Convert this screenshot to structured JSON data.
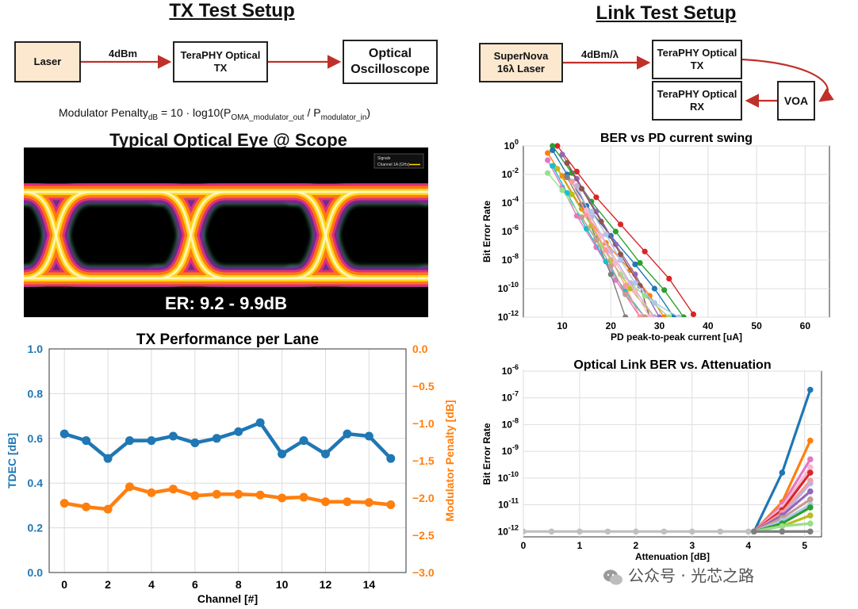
{
  "tx_setup": {
    "title": "TX Test Setup",
    "laser": "Laser",
    "arrow_label": "4dBm",
    "tx_line1": "TeraPHY Optical",
    "tx_line2": "TX",
    "scope_line1": "Optical",
    "scope_line2": "Oscilloscope",
    "formula": {
      "lhs": "Modulator Penalty",
      "lhs_sub": "dB",
      "mid": " = 10 · log10(P",
      "num_sub": "OMA_modulator_out",
      "slash": "  /  P",
      "den_sub": "modulator_in",
      "close": ")"
    }
  },
  "link_setup": {
    "title": "Link Test Setup",
    "laser_line1": "SuperNova",
    "laser_line2": "16λ Laser",
    "arrow_label": "4dBm/λ",
    "tx_line1": "TeraPHY Optical",
    "tx_line2": "TX",
    "rx_line1": "TeraPHY Optical",
    "rx_line2": "RX",
    "voa": "VOA"
  },
  "eye": {
    "title": "Typical Optical Eye @ Scope",
    "er_label": "ER: 9.2 - 9.9dB",
    "legend_title": "Signals",
    "legend_entry": "Channel 1A (GHz)"
  },
  "watermark": "公众号 · 光芯之路",
  "chart_data": [
    {
      "id": "tx_perf",
      "type": "line",
      "title": "TX Performance per Lane",
      "xlabel": "Channel [#]",
      "ylabel": "TDEC [dB]",
      "ylabel_right": "Modulator Penalty [dB]",
      "xlim": [
        -0.7,
        15.7
      ],
      "ylim": [
        0.0,
        1.0
      ],
      "ylim_right": [
        -3.0,
        0.0
      ],
      "x_ticks": [
        0,
        2,
        4,
        6,
        8,
        10,
        12,
        14
      ],
      "y_ticks": [
        "0.0",
        "0.2",
        "0.4",
        "0.6",
        "0.8",
        "1.0"
      ],
      "y_ticks_right": [
        "−3.0",
        "−2.5",
        "−2.0",
        "−1.5",
        "−1.0",
        "−0.5",
        "0.0"
      ],
      "grid": true,
      "x": [
        0,
        1,
        2,
        3,
        4,
        5,
        6,
        7,
        8,
        9,
        10,
        11,
        12,
        13,
        14,
        15
      ],
      "series": [
        {
          "name": "TDEC",
          "axis": "left",
          "color": "#1f77b4",
          "values": [
            0.62,
            0.59,
            0.51,
            0.59,
            0.59,
            0.61,
            0.58,
            0.6,
            0.63,
            0.67,
            0.53,
            0.59,
            0.53,
            0.62,
            0.61,
            0.51
          ]
        },
        {
          "name": "Modulator Penalty",
          "axis": "right",
          "color": "#ff7f0e",
          "values": [
            -2.07,
            -2.12,
            -2.15,
            -1.85,
            -1.93,
            -1.88,
            -1.97,
            -1.95,
            -1.95,
            -1.96,
            -2.0,
            -1.99,
            -2.05,
            -2.05,
            -2.06,
            -2.09
          ]
        }
      ]
    },
    {
      "id": "ber_pd",
      "type": "line",
      "title": "BER vs PD current swing",
      "xlabel": "PD peak-to-peak current [uA]",
      "ylabel": "Bit Error Rate",
      "xlim": [
        2,
        65
      ],
      "ylim_log10": [
        -12,
        0
      ],
      "y_scale": "log",
      "x_ticks": [
        10,
        20,
        30,
        40,
        50,
        60
      ],
      "y_ticks": [
        "0",
        "-2",
        "-4",
        "-6",
        "-8",
        "-10",
        "-12"
      ],
      "grid": true,
      "series": [
        {
          "color": "#d62728",
          "x": [
            9,
            13,
            17,
            22,
            27,
            32,
            37
          ],
          "y": [
            0,
            -1.8,
            -3.6,
            -5.5,
            -7.4,
            -9.3,
            -11.8
          ]
        },
        {
          "color": "#2ca02c",
          "x": [
            8,
            12,
            16,
            21,
            26,
            31,
            35
          ],
          "y": [
            0,
            -1.9,
            -3.9,
            -6.0,
            -8.2,
            -10.1,
            -12
          ]
        },
        {
          "color": "#1f77b4",
          "x": [
            8,
            11,
            15,
            20,
            25,
            29,
            33
          ],
          "y": [
            -0.3,
            -2.0,
            -4.2,
            -6.3,
            -8.3,
            -10.0,
            -12
          ]
        },
        {
          "color": "#ff7f0e",
          "x": [
            7,
            10,
            14,
            19,
            24,
            28,
            31
          ],
          "y": [
            -0.5,
            -2.1,
            -4.4,
            -6.8,
            -8.7,
            -10.5,
            -12
          ]
        },
        {
          "color": "#9467bd",
          "x": [
            10,
            13,
            17,
            21,
            25,
            30
          ],
          "y": [
            -0.6,
            -2.3,
            -4.6,
            -6.9,
            -9.0,
            -12
          ]
        },
        {
          "color": "#8c564b",
          "x": [
            11,
            14,
            18,
            22,
            26,
            28
          ],
          "y": [
            -1.2,
            -3.0,
            -5.3,
            -7.6,
            -9.8,
            -12
          ]
        },
        {
          "color": "#e377c2",
          "x": [
            7,
            10,
            13,
            17,
            21,
            26
          ],
          "y": [
            -1.0,
            -2.9,
            -4.9,
            -7.1,
            -9.4,
            -12
          ]
        },
        {
          "color": "#7f7f7f",
          "x": [
            11,
            14,
            17,
            20,
            23
          ],
          "y": [
            -2.2,
            -4.1,
            -6.5,
            -9.0,
            -12
          ]
        },
        {
          "color": "#bcbd22",
          "x": [
            9,
            12,
            16,
            20,
            24,
            29
          ],
          "y": [
            -1.6,
            -3.4,
            -5.6,
            -8.0,
            -10.0,
            -12
          ]
        },
        {
          "color": "#17becf",
          "x": [
            8,
            11,
            15,
            19,
            23,
            27
          ],
          "y": [
            -1.4,
            -3.3,
            -5.8,
            -8.1,
            -10.2,
            -12
          ]
        },
        {
          "color": "#98df8a",
          "x": [
            7,
            10,
            14,
            18,
            22,
            27,
            32
          ],
          "y": [
            -1.9,
            -3.1,
            -5.0,
            -7.0,
            -9.0,
            -10.5,
            -12
          ]
        },
        {
          "color": "#ff9896",
          "x": [
            12,
            15,
            19,
            23,
            26
          ],
          "y": [
            -2.5,
            -4.8,
            -7.3,
            -9.8,
            -12
          ]
        },
        {
          "color": "#c5b0d5",
          "x": [
            13,
            16,
            20,
            24,
            29
          ],
          "y": [
            -2.8,
            -5.0,
            -7.4,
            -9.6,
            -12
          ]
        },
        {
          "color": "#f7b6d2",
          "x": [
            15,
            18,
            21,
            25,
            28
          ],
          "y": [
            -4.5,
            -6.3,
            -8.2,
            -10.2,
            -12
          ]
        },
        {
          "color": "#c49c94",
          "x": [
            14,
            17,
            20,
            23,
            27
          ],
          "y": [
            -5.0,
            -6.6,
            -8.4,
            -10.4,
            -12
          ]
        },
        {
          "color": "#aec7e8",
          "x": [
            16,
            19,
            22,
            25,
            29,
            34
          ],
          "y": [
            -4.6,
            -6.2,
            -8.0,
            -9.6,
            -11.0,
            -12
          ]
        }
      ]
    },
    {
      "id": "ber_att",
      "type": "line",
      "title": "Optical Link BER vs. Attenuation",
      "xlabel": "Attenuation [dB]",
      "ylabel": "Bit Error Rate",
      "xlim": [
        0,
        5.3
      ],
      "ylim_log10": [
        -12.2,
        -6
      ],
      "y_scale": "log",
      "x_ticks": [
        0,
        1,
        2,
        3,
        4,
        5
      ],
      "y_ticks": [
        "-12",
        "-11",
        "-10",
        "-9",
        "-8",
        "-7",
        "-6"
      ],
      "grid": true,
      "baseline": {
        "color": "#c0c0c0",
        "x": [
          0,
          0.5,
          1,
          1.5,
          2,
          2.5,
          3,
          3.5,
          4,
          4.6
        ],
        "y": -12
      },
      "series": [
        {
          "color": "#1f77b4",
          "x": [
            4.1,
            4.6,
            5.1
          ],
          "y": [
            -12,
            -9.8,
            -6.7
          ]
        },
        {
          "color": "#ff7f0e",
          "x": [
            4.1,
            4.6,
            5.1
          ],
          "y": [
            -12,
            -10.9,
            -8.6
          ]
        },
        {
          "color": "#e377c2",
          "x": [
            4.1,
            4.6,
            5.1
          ],
          "y": [
            -12,
            -11.0,
            -9.3
          ]
        },
        {
          "color": "#f7b6d2",
          "x": [
            4.1,
            4.6,
            5.1
          ],
          "y": [
            -12,
            -11.1,
            -9.6
          ]
        },
        {
          "color": "#d62728",
          "x": [
            4.1,
            4.6,
            5.1
          ],
          "y": [
            -12,
            -11.2,
            -9.8
          ]
        },
        {
          "color": "#ff9896",
          "x": [
            4.1,
            4.6,
            5.1
          ],
          "y": [
            -12,
            -11.3,
            -10.1
          ]
        },
        {
          "color": "#c5b0d5",
          "x": [
            4.1,
            4.6,
            5.1
          ],
          "y": [
            -12,
            -11.4,
            -10.2
          ]
        },
        {
          "color": "#9467bd",
          "x": [
            4.1,
            4.6,
            5.1
          ],
          "y": [
            -12,
            -11.4,
            -10.5
          ]
        },
        {
          "color": "#c49c94",
          "x": [
            4.1,
            4.6,
            5.1
          ],
          "y": [
            -12,
            -11.5,
            -10.8
          ]
        },
        {
          "color": "#aec7e8",
          "x": [
            4.1,
            4.6,
            5.1
          ],
          "y": [
            -12,
            -11.6,
            -11.0
          ]
        },
        {
          "color": "#2ca02c",
          "x": [
            4.1,
            4.6,
            5.1
          ],
          "y": [
            -12,
            -11.7,
            -11.1
          ]
        },
        {
          "color": "#bcbd22",
          "x": [
            4.1,
            4.6,
            5.1
          ],
          "y": [
            -12,
            -11.8,
            -11.4
          ]
        },
        {
          "color": "#98df8a",
          "x": [
            4.1,
            4.6,
            5.1
          ],
          "y": [
            -12,
            -11.8,
            -11.7
          ]
        },
        {
          "color": "#7f7f7f",
          "x": [
            4.1,
            4.6,
            5.1
          ],
          "y": [
            -12,
            -12,
            -12
          ]
        }
      ]
    }
  ]
}
